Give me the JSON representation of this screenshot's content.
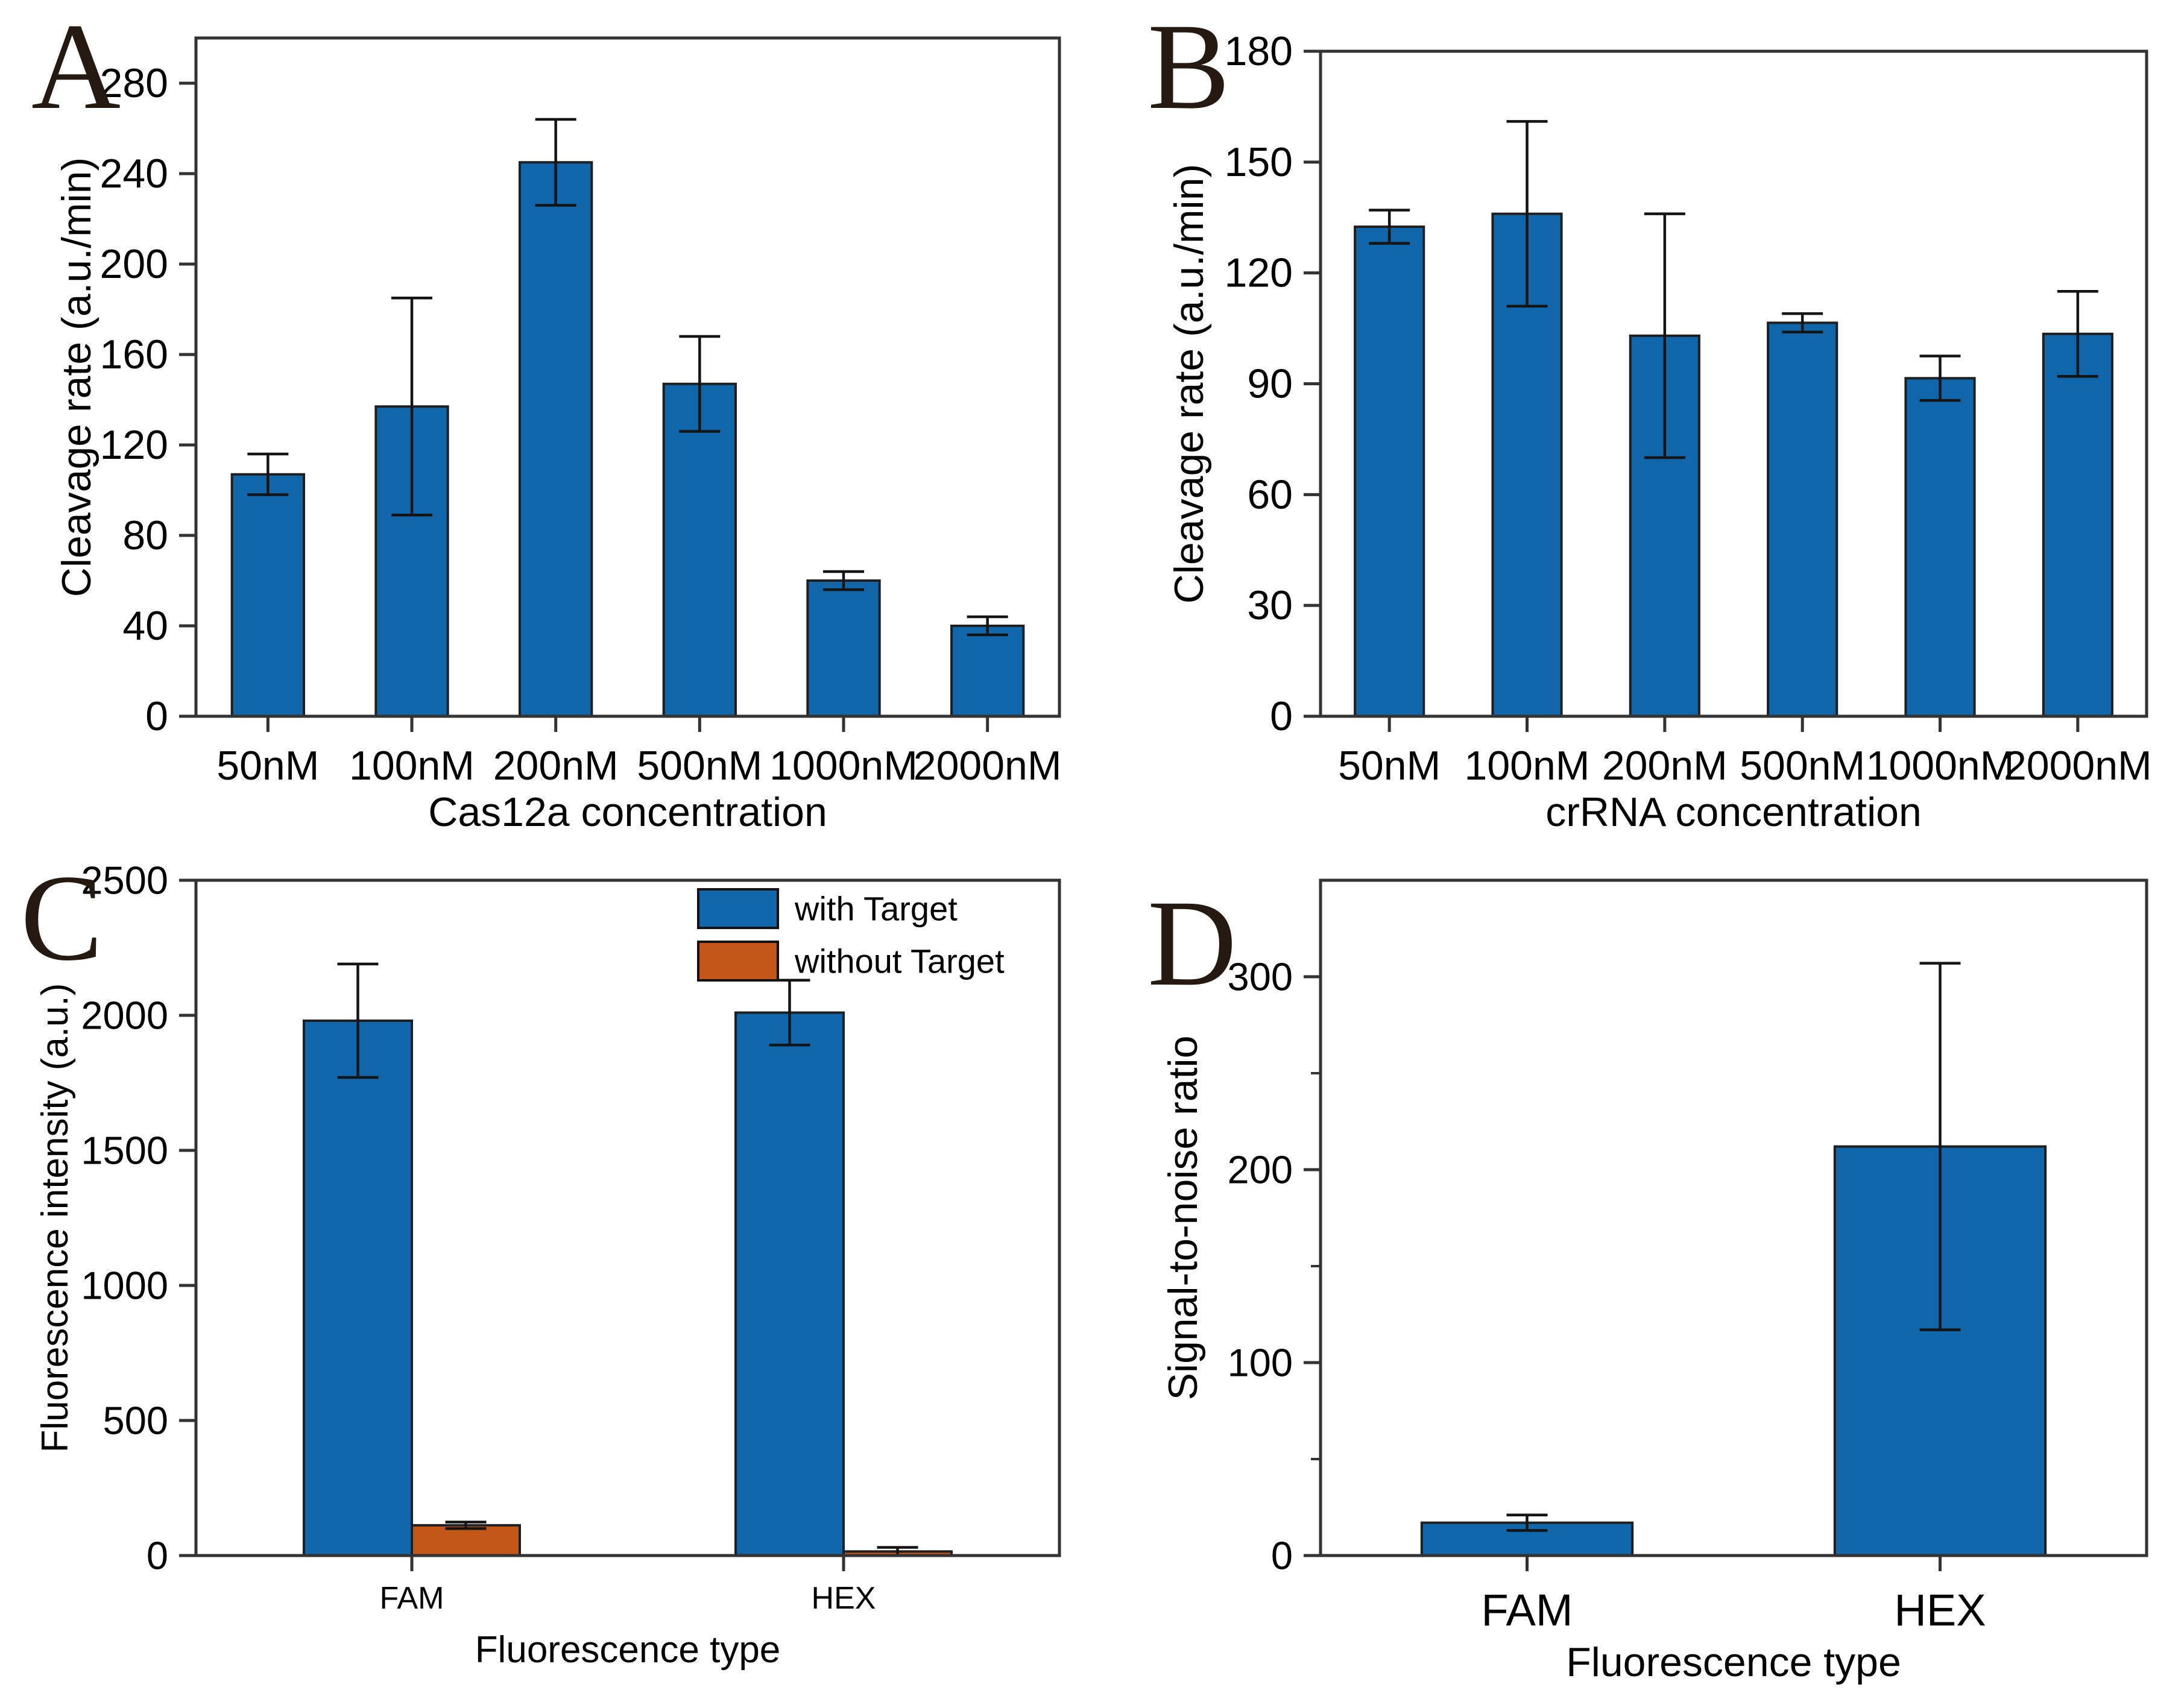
{
  "figure": {
    "background": "#ffffff",
    "frame_color": "#333333",
    "text_color": "#000000",
    "panel_letter_color": "#241a12"
  },
  "chart_data": [
    {
      "panel_label": "A",
      "type": "bar",
      "title": "",
      "xlabel": "Cas12a concentration",
      "ylabel": "Cleavage rate (a.u./min)",
      "categories": [
        "50nM",
        "100nM",
        "200nM",
        "500nM",
        "1000nM",
        "2000nM"
      ],
      "values": [
        107,
        137,
        245,
        147,
        60,
        40
      ],
      "errors": [
        9,
        48,
        19,
        21,
        4,
        4
      ],
      "bar_color": "#1166aa",
      "ylim": [
        0,
        300
      ],
      "yticks": [
        0,
        40,
        80,
        120,
        160,
        200,
        240,
        280
      ],
      "grid": false,
      "legend_position": null
    },
    {
      "panel_label": "B",
      "type": "bar",
      "title": "",
      "xlabel": "crRNA concentration",
      "ylabel": "Cleavage rate (a.u./min)",
      "categories": [
        "50nM",
        "100nM",
        "200nM",
        "500nM",
        "1000nM",
        "2000nM"
      ],
      "values": [
        132.5,
        136,
        103,
        106.5,
        91.5,
        103.5
      ],
      "errors": [
        4.5,
        25,
        33,
        2.5,
        6,
        11.5
      ],
      "bar_color": "#1166aa",
      "ylim": [
        0,
        180
      ],
      "yticks": [
        0,
        30,
        60,
        90,
        120,
        150,
        180
      ],
      "grid": false,
      "legend_position": null
    },
    {
      "panel_label": "C",
      "type": "bar",
      "title": "",
      "xlabel": "Fluorescence type",
      "ylabel": "Fluorescence intensity (a.u.)",
      "categories": [
        "FAM",
        "HEX"
      ],
      "series": [
        {
          "name": "with Target",
          "color": "#1166aa",
          "values": [
            1980,
            2010
          ],
          "errors": [
            210,
            120
          ]
        },
        {
          "name": "without Target",
          "color": "#c3571a",
          "values": [
            112,
            15
          ],
          "errors": [
            12,
            15
          ]
        }
      ],
      "ylim": [
        0,
        2500
      ],
      "yticks": [
        0,
        500,
        1000,
        1500,
        2000,
        2500
      ],
      "grid": false,
      "legend_position": "top-right",
      "legend": [
        "with Target",
        "without Target"
      ]
    },
    {
      "panel_label": "D",
      "type": "bar",
      "title": "",
      "xlabel": "Fluorescence type",
      "ylabel": "Signal-to-noise ratio",
      "categories": [
        "FAM",
        "HEX"
      ],
      "values": [
        17,
        212
      ],
      "errors": [
        4,
        95
      ],
      "bar_color": "#1166aa",
      "ylim": [
        0,
        350
      ],
      "yticks": [
        0,
        100,
        200,
        300
      ],
      "yminor": 50,
      "grid": false,
      "legend_position": null
    }
  ]
}
